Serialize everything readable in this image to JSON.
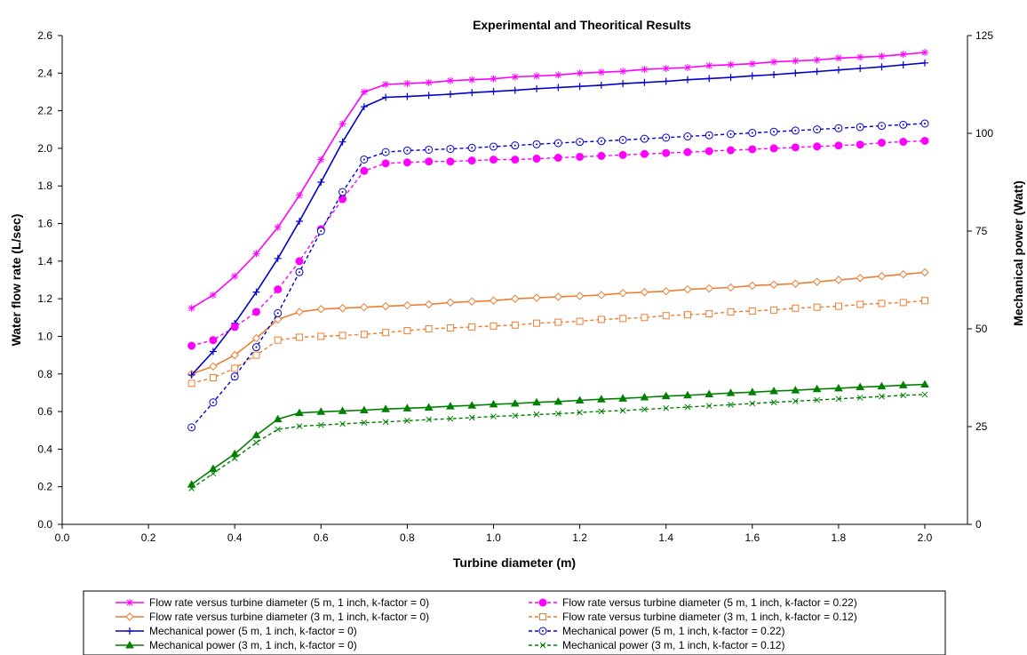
{
  "chart_data": {
    "type": "line",
    "title": "Experimental and Theoritical Results",
    "xlabel": "Turbine diameter (m)",
    "ylabel_left": "Water flow rate (L/sec)",
    "ylabel_right": "Mechanical power (Watt)",
    "xlim": [
      0.0,
      2.0
    ],
    "ylim_left": [
      0.0,
      2.6
    ],
    "ylim_right": [
      0,
      125
    ],
    "x_ticks": [
      "0.0",
      "0.2",
      "0.4",
      "0.6",
      "0.8",
      "1.0",
      "1.2",
      "1.4",
      "1.6",
      "1.8",
      "2.0"
    ],
    "y_left_ticks": [
      "0.0",
      "0.2",
      "0.4",
      "0.6",
      "0.8",
      "1.0",
      "1.2",
      "1.4",
      "1.6",
      "1.8",
      "2.0",
      "2.2",
      "2.4",
      "2.6"
    ],
    "y_right_ticks": [
      "0",
      "25",
      "50",
      "75",
      "100",
      "125"
    ],
    "grid": false,
    "legend_position": "bottom",
    "x": [
      0.3,
      0.35,
      0.4,
      0.45,
      0.5,
      0.55,
      0.6,
      0.65,
      0.7,
      0.75,
      0.8,
      0.85,
      0.9,
      0.95,
      1.0,
      1.05,
      1.1,
      1.15,
      1.2,
      1.25,
      1.3,
      1.35,
      1.4,
      1.45,
      1.5,
      1.55,
      1.6,
      1.65,
      1.7,
      1.75,
      1.8,
      1.85,
      1.9,
      1.95,
      2.0
    ],
    "series": [
      {
        "name": "Flow rate versus turbine diameter (5 m, 1 inch, k-factor = 0)",
        "axis": "left",
        "color": "#ff00ff",
        "marker": "asterisk",
        "dash": false,
        "values": [
          1.15,
          1.22,
          1.32,
          1.44,
          1.58,
          1.75,
          1.94,
          2.13,
          2.3,
          2.34,
          2.345,
          2.35,
          2.36,
          2.365,
          2.37,
          2.38,
          2.385,
          2.39,
          2.4,
          2.405,
          2.41,
          2.42,
          2.425,
          2.43,
          2.44,
          2.445,
          2.45,
          2.46,
          2.465,
          2.47,
          2.48,
          2.485,
          2.49,
          2.5,
          2.51
        ]
      },
      {
        "name": "Flow rate versus turbine diameter (3 m, 1 inch, k-factor = 0)",
        "axis": "left",
        "color": "#ed7d31",
        "marker": "diamond-open",
        "dash": false,
        "values": [
          0.8,
          0.84,
          0.9,
          0.99,
          1.09,
          1.13,
          1.145,
          1.15,
          1.155,
          1.16,
          1.165,
          1.17,
          1.18,
          1.185,
          1.19,
          1.2,
          1.205,
          1.21,
          1.215,
          1.22,
          1.23,
          1.235,
          1.24,
          1.25,
          1.255,
          1.26,
          1.27,
          1.275,
          1.28,
          1.29,
          1.3,
          1.31,
          1.32,
          1.33,
          1.34
        ]
      },
      {
        "name": "Mechanical power (5 m, 1 inch, k-factor = 0)",
        "axis": "right",
        "color": "#0000cc",
        "marker": "plus",
        "dash": false,
        "values": [
          38.2,
          44.2,
          51.4,
          59.4,
          68.0,
          77.5,
          87.5,
          97.8,
          106.8,
          109.2,
          109.4,
          109.7,
          110.0,
          110.4,
          110.7,
          111.0,
          111.4,
          111.7,
          112.0,
          112.3,
          112.7,
          113.0,
          113.3,
          113.7,
          114.0,
          114.3,
          114.7,
          115.0,
          115.4,
          115.8,
          116.2,
          116.6,
          117.0,
          117.5,
          118.0
        ]
      },
      {
        "name": "Mechanical power (3 m, 1 inch, k-factor = 0)",
        "axis": "right",
        "color": "#008000",
        "marker": "triangle",
        "dash": false,
        "values": [
          10.2,
          14.2,
          18.0,
          22.8,
          26.9,
          28.5,
          28.8,
          29.0,
          29.2,
          29.5,
          29.7,
          29.9,
          30.2,
          30.4,
          30.7,
          30.9,
          31.2,
          31.4,
          31.7,
          32.0,
          32.2,
          32.5,
          32.8,
          33.0,
          33.3,
          33.6,
          33.8,
          34.1,
          34.3,
          34.6,
          34.8,
          35.1,
          35.3,
          35.6,
          35.8
        ]
      },
      {
        "name": "Flow rate versus turbine diameter (5 m, 1 inch, k-factor = 0.22)",
        "axis": "left",
        "color": "#ff00ff",
        "marker": "circle-filled",
        "dash": true,
        "values": [
          0.95,
          0.98,
          1.05,
          1.13,
          1.25,
          1.4,
          1.57,
          1.73,
          1.88,
          1.92,
          1.925,
          1.93,
          1.93,
          1.935,
          1.94,
          1.94,
          1.945,
          1.95,
          1.955,
          1.96,
          1.965,
          1.97,
          1.975,
          1.98,
          1.985,
          1.99,
          1.995,
          2.0,
          2.005,
          2.01,
          2.015,
          2.02,
          2.03,
          2.035,
          2.04
        ]
      },
      {
        "name": "Flow rate versus turbine diameter (3 m, 1 inch, k-factor = 0.12)",
        "axis": "left",
        "color": "#ed7d31",
        "marker": "square-open",
        "dash": true,
        "values": [
          0.75,
          0.78,
          0.83,
          0.9,
          0.98,
          0.995,
          1.0,
          1.005,
          1.01,
          1.02,
          1.03,
          1.04,
          1.045,
          1.05,
          1.055,
          1.06,
          1.07,
          1.075,
          1.08,
          1.09,
          1.095,
          1.1,
          1.11,
          1.115,
          1.12,
          1.13,
          1.135,
          1.14,
          1.15,
          1.155,
          1.16,
          1.17,
          1.175,
          1.18,
          1.19
        ]
      },
      {
        "name": "Mechanical power (5 m, 1 inch, k-factor = 0.22)",
        "axis": "right",
        "color": "#0000cc",
        "marker": "circle-dot",
        "dash": true,
        "values": [
          24.8,
          31.2,
          37.8,
          45.3,
          54.0,
          64.5,
          75.0,
          85.0,
          93.3,
          95.2,
          95.6,
          95.8,
          96.0,
          96.3,
          96.6,
          96.9,
          97.2,
          97.5,
          97.8,
          98.0,
          98.3,
          98.6,
          98.9,
          99.2,
          99.5,
          99.8,
          100.1,
          100.4,
          100.7,
          101.0,
          101.3,
          101.6,
          101.9,
          102.2,
          102.5
        ]
      },
      {
        "name": "Mechanical power (3 m, 1 inch, k-factor = 0.12)",
        "axis": "right",
        "color": "#008000",
        "marker": "x",
        "dash": true,
        "values": [
          9.2,
          13.0,
          16.9,
          20.9,
          24.3,
          25.1,
          25.4,
          25.7,
          26.0,
          26.2,
          26.5,
          26.8,
          27.0,
          27.3,
          27.6,
          27.8,
          28.1,
          28.3,
          28.6,
          28.9,
          29.1,
          29.4,
          29.7,
          30.0,
          30.3,
          30.6,
          30.9,
          31.2,
          31.5,
          31.8,
          32.1,
          32.4,
          32.7,
          33.0,
          33.2
        ]
      }
    ]
  }
}
